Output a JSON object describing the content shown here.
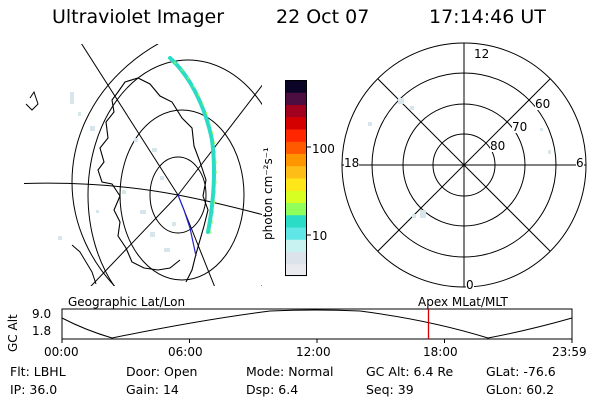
{
  "header": {
    "instrument": "Ultraviolet Imager",
    "date": "22 Oct 07",
    "time": "17:14:46 UT"
  },
  "colorbar": {
    "unit_label": "photon cm⁻²s⁻¹",
    "ticks": [
      "100",
      "10"
    ],
    "colors": [
      "#e9eaf0",
      "#dde3ea",
      "#c8f2f2",
      "#60e6e6",
      "#2adcc6",
      "#90ff5a",
      "#d7ff22",
      "#ffe619",
      "#ffbd18",
      "#ff9600",
      "#ff5a00",
      "#ff2600",
      "#d40000",
      "#a1001e",
      "#4c0d40",
      "#0b0426"
    ]
  },
  "geo_panel": {
    "label": "Geographic Lat/Lon"
  },
  "polar_panel": {
    "mlt_labels": {
      "top": "12",
      "left": "18",
      "right": "6",
      "bottom": "0"
    },
    "lat_labels": [
      "60",
      "70",
      "80"
    ]
  },
  "altitude_strip": {
    "ylabel": "GC Alt",
    "yticks": [
      "9.0",
      "1.8"
    ],
    "right_label": "Apex MLat/MLT",
    "xticks": [
      "00:00",
      "06:00",
      "12:00",
      "18:00",
      "23:59"
    ],
    "marker_time": "17:14:46",
    "marker_color": "#d40000"
  },
  "status": {
    "rows": [
      [
        {
          "label": "Flt:",
          "value": "LBHL"
        },
        {
          "label": "Door:",
          "value": "Open"
        },
        {
          "label": "Mode:",
          "value": "Normal"
        },
        {
          "label": "GC Alt:",
          "value": "6.4 Re"
        },
        {
          "label": "GLat:",
          "value": "-76.6"
        }
      ],
      [
        {
          "label": "IP:",
          "value": "36.0"
        },
        {
          "label": "Gain:",
          "value": "14"
        },
        {
          "label": "Dsp:",
          "value": "6.4"
        },
        {
          "label": "Seq:",
          "value": "39"
        },
        {
          "label": "GLon:",
          "value": "60.2"
        }
      ]
    ]
  }
}
